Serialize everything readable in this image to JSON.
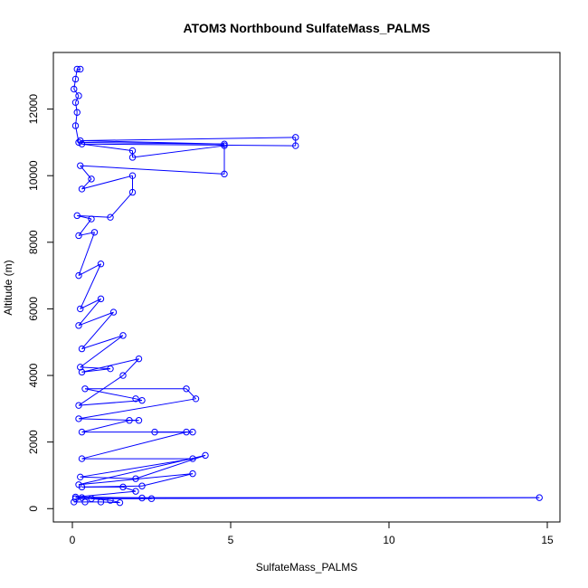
{
  "chart_data": {
    "type": "line",
    "title": "ATOM3 Northbound SulfateMass_PALMS",
    "xlabel": "SulfateMass_PALMS",
    "ylabel": "Altitude (m)",
    "xlim": [
      -0.6,
      15.4
    ],
    "ylim": [
      -400,
      13700
    ],
    "xticks": [
      0,
      5,
      10,
      15
    ],
    "yticks": [
      0,
      2000,
      4000,
      6000,
      8000,
      10000,
      12000
    ],
    "grid": false,
    "series_color": "#0000ff",
    "marker": "open-circle",
    "series": [
      {
        "values": [
          [
            0.05,
            200
          ],
          [
            0.4,
            200
          ],
          [
            0.9,
            200
          ],
          [
            1.5,
            180
          ],
          [
            1.2,
            250
          ],
          [
            0.6,
            300
          ],
          [
            14.75,
            330
          ],
          [
            0.3,
            330
          ],
          [
            0.1,
            300
          ],
          [
            2.5,
            300
          ],
          [
            2.2,
            320
          ],
          [
            0.1,
            350
          ],
          [
            2.0,
            520
          ],
          [
            1.6,
            650
          ],
          [
            0.3,
            650
          ],
          [
            2.2,
            680
          ],
          [
            3.8,
            1050
          ],
          [
            0.2,
            720
          ],
          [
            4.2,
            1600
          ],
          [
            2.0,
            900
          ],
          [
            0.25,
            950
          ],
          [
            3.8,
            1500
          ],
          [
            0.3,
            1500
          ],
          [
            3.6,
            2300
          ],
          [
            2.6,
            2300
          ],
          [
            3.8,
            2300
          ],
          [
            0.3,
            2300
          ],
          [
            1.8,
            2650
          ],
          [
            2.1,
            2650
          ],
          [
            0.2,
            2700
          ],
          [
            3.9,
            3300
          ],
          [
            3.6,
            3600
          ],
          [
            0.4,
            3600
          ],
          [
            2.0,
            3300
          ],
          [
            2.2,
            3250
          ],
          [
            0.2,
            3100
          ],
          [
            1.6,
            4000
          ],
          [
            2.1,
            4500
          ],
          [
            0.3,
            4100
          ],
          [
            1.2,
            4200
          ],
          [
            0.25,
            4250
          ],
          [
            1.6,
            5200
          ],
          [
            0.3,
            4800
          ],
          [
            1.3,
            5900
          ],
          [
            0.2,
            5500
          ],
          [
            0.9,
            6300
          ],
          [
            0.25,
            6000
          ],
          [
            0.9,
            7350
          ],
          [
            0.2,
            7000
          ],
          [
            0.7,
            8300
          ],
          [
            0.2,
            8200
          ],
          [
            0.6,
            8700
          ],
          [
            0.15,
            8800
          ],
          [
            1.2,
            8750
          ],
          [
            1.9,
            9500
          ],
          [
            1.9,
            10000
          ],
          [
            0.3,
            9600
          ],
          [
            0.6,
            9900
          ],
          [
            0.25,
            10300
          ],
          [
            4.8,
            10050
          ],
          [
            4.8,
            10900
          ],
          [
            1.9,
            10550
          ],
          [
            1.9,
            10750
          ],
          [
            0.3,
            10950
          ],
          [
            7.05,
            10900
          ],
          [
            7.05,
            11150
          ],
          [
            0.25,
            11050
          ],
          [
            4.8,
            10950
          ],
          [
            0.2,
            11000
          ],
          [
            0.1,
            11500
          ],
          [
            0.15,
            11900
          ],
          [
            0.1,
            12200
          ],
          [
            0.2,
            12400
          ],
          [
            0.05,
            12600
          ],
          [
            0.1,
            12900
          ],
          [
            0.15,
            13200
          ],
          [
            0.25,
            13200
          ]
        ]
      }
    ]
  }
}
